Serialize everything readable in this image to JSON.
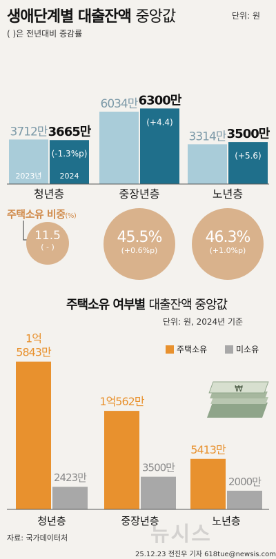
{
  "header": {
    "title_bold": "생애단계별 대출잔액",
    "title_light": "중앙값",
    "unit": "단위: 원",
    "note": "( )은 전년대비 증감률"
  },
  "ownership_ratio": {
    "title": "주택소유 비중",
    "title_unit": "(%)",
    "items": [
      {
        "group": "청년층",
        "value": "11.5",
        "change": "( - )"
      },
      {
        "group": "중장년층",
        "value": "45.5%",
        "change": "(+0.6%p)"
      },
      {
        "group": "노년층",
        "value": "46.3%",
        "change": "(+1.0%p)"
      }
    ]
  },
  "section2": {
    "title_bold": "주택소유 여부별",
    "title_light": "대출잔액 중앙값",
    "unit": "단위: 원, 2024년 기준",
    "legend_owned": "주택소유",
    "legend_not_owned": "미소유"
  },
  "source": "자료: 국가데이터처",
  "credit": "25.12.23 전진우 기자 618tue@newsis.com",
  "watermark": "뉴시스",
  "colors": {
    "light_blue": "#a9ccd9",
    "teal": "#1f6f8b",
    "beige": "#d9b28c",
    "orange": "#e8912e",
    "gray": "#a8a8a8"
  },
  "chart_data": [
    {
      "type": "bar",
      "categories": [
        "청년층",
        "중장년층",
        "노년층"
      ],
      "series": [
        {
          "name": "2023년",
          "values": [
            3712,
            6034,
            3314
          ],
          "labels": [
            "3712만",
            "6034만",
            "3314만"
          ]
        },
        {
          "name": "2024",
          "values": [
            3665,
            6300,
            3500
          ],
          "labels": [
            "3665만",
            "6300만",
            "3500만"
          ],
          "changes": [
            "(-1.3%p)",
            "(+4.4)",
            "(+5.6)"
          ]
        }
      ]
    },
    {
      "type": "bar",
      "categories": [
        "청년층",
        "중장년층",
        "노년층"
      ],
      "series": [
        {
          "name": "주택소유",
          "values": [
            15843,
            10562,
            5413
          ],
          "labels": [
            [
              "1억",
              "5843만"
            ],
            [
              "1억562만"
            ],
            [
              "5413만"
            ]
          ]
        },
        {
          "name": "미소유",
          "values": [
            2423,
            3500,
            2000
          ],
          "labels": [
            [
              "2423만"
            ],
            [
              "3500만"
            ],
            [
              "2000만"
            ]
          ]
        }
      ]
    }
  ]
}
